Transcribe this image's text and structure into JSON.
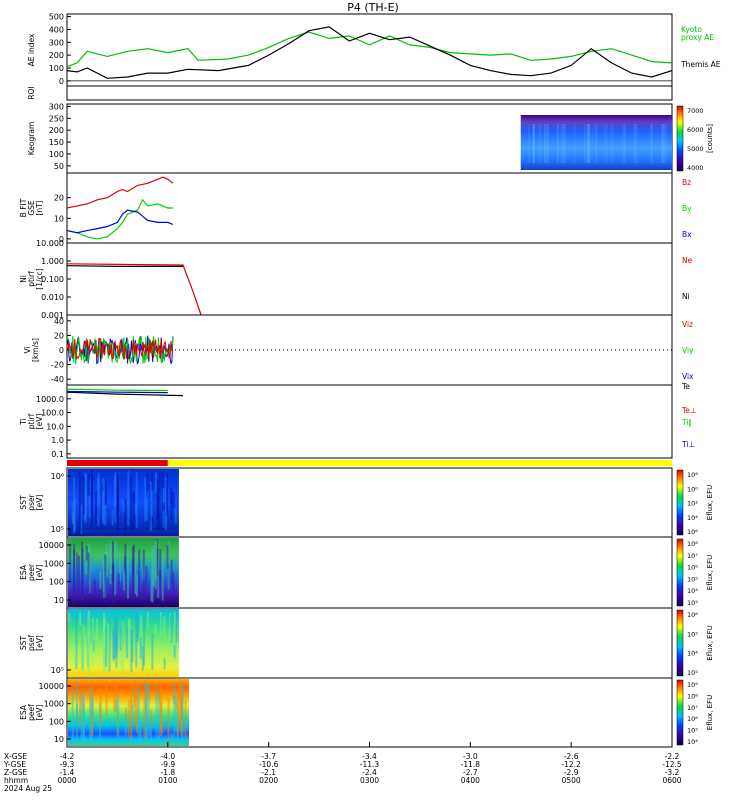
{
  "title": "P4 (TH-E)",
  "colors": {
    "kyoto": "#00c000",
    "themis": "#000000",
    "red": "#e00000",
    "green": "#00d000",
    "blue": "#0000e0",
    "yellow": "#ffff00"
  },
  "footer": {
    "labels": [
      "X-GSE",
      "Y-GSE",
      "Z-GSE",
      "hhmm",
      "2024 Aug 25"
    ],
    "columns": [
      {
        "x": "-4.2",
        "y": "-9.3",
        "z": "-1.4",
        "t": "0000"
      },
      {
        "x": "-4.0",
        "y": "-9.9",
        "z": "-1.8",
        "t": "0100"
      },
      {
        "x": "-3.7",
        "y": "-10.6",
        "z": "-2.1",
        "t": "0200"
      },
      {
        "x": "-3.4",
        "y": "-11.3",
        "z": "-2.4",
        "t": "0300"
      },
      {
        "x": "-3.0",
        "y": "-11.8",
        "z": "-2.7",
        "t": "0400"
      },
      {
        "x": "-2.6",
        "y": "-12.2",
        "z": "-2.9",
        "t": "0500"
      },
      {
        "x": "-2.2",
        "y": "-12.5",
        "z": "-3.2",
        "t": "0600"
      }
    ]
  },
  "chart_data": [
    {
      "id": "ae",
      "type": "line",
      "ylabel": "AE index",
      "yticks": [
        "0",
        "100",
        "200",
        "300",
        "400",
        "500"
      ],
      "ylim": [
        -40,
        520
      ],
      "xlim": [
        0,
        6
      ],
      "series": [
        {
          "name": "Kyoto proxy AE",
          "label_lines": [
            "Kyoto",
            "proxy AE"
          ],
          "color": "#00c000",
          "x": [
            0,
            0.1,
            0.2,
            0.4,
            0.6,
            0.8,
            1.0,
            1.2,
            1.3,
            1.6,
            1.8,
            2.0,
            2.2,
            2.4,
            2.6,
            2.8,
            3.0,
            3.2,
            3.4,
            3.6,
            3.8,
            4.0,
            4.2,
            4.4,
            4.6,
            4.8,
            5.0,
            5.2,
            5.4,
            5.6,
            5.8,
            6.0
          ],
          "y": [
            110,
            140,
            230,
            190,
            230,
            250,
            220,
            250,
            160,
            170,
            200,
            260,
            330,
            380,
            330,
            350,
            280,
            350,
            280,
            260,
            220,
            210,
            200,
            210,
            160,
            170,
            190,
            230,
            250,
            200,
            150,
            140
          ]
        },
        {
          "name": "Themis AE",
          "label_lines": [
            "Themis AE"
          ],
          "color": "#000000",
          "x": [
            0,
            0.1,
            0.2,
            0.4,
            0.6,
            0.8,
            1.0,
            1.2,
            1.5,
            1.8,
            2.0,
            2.2,
            2.4,
            2.6,
            2.8,
            3.0,
            3.2,
            3.4,
            3.6,
            3.8,
            4.0,
            4.2,
            4.4,
            4.6,
            4.8,
            5.0,
            5.2,
            5.4,
            5.6,
            5.8,
            6.0
          ],
          "y": [
            80,
            70,
            100,
            20,
            30,
            60,
            60,
            90,
            80,
            120,
            200,
            290,
            390,
            420,
            310,
            370,
            320,
            340,
            270,
            200,
            120,
            80,
            50,
            40,
            60,
            120,
            250,
            140,
            60,
            30,
            80
          ]
        }
      ]
    },
    {
      "id": "roi",
      "type": "line",
      "ylabel": "ROI",
      "yticks": [],
      "series": []
    },
    {
      "id": "keogram",
      "type": "heatmap",
      "ylabel": "Keogram",
      "yticks": [
        "50",
        "100",
        "150",
        "200",
        "250",
        "300"
      ],
      "ylim": [
        20,
        310
      ],
      "x_extent": [
        4.5,
        6.0
      ],
      "colorbar": {
        "label": "[counts]",
        "ticks": [
          "4000",
          "5000",
          "6000",
          "7000"
        ]
      }
    },
    {
      "id": "bfit",
      "type": "line",
      "ylabel_lines": [
        "B FIT",
        "GSE",
        "[nT]"
      ],
      "yticks": [
        "0",
        "10",
        "20"
      ],
      "ylim": [
        -2,
        32
      ],
      "xlim": [
        0,
        6
      ],
      "series": [
        {
          "name": "Bz",
          "color": "#e00000",
          "x": [
            0,
            0.1,
            0.2,
            0.3,
            0.4,
            0.5,
            0.55,
            0.6,
            0.7,
            0.8,
            0.9,
            0.95,
            1.0,
            1.05
          ],
          "y": [
            15,
            16,
            17,
            19,
            20,
            23,
            24,
            23,
            26,
            27,
            29,
            30,
            29,
            27
          ]
        },
        {
          "name": "By",
          "color": "#00d000",
          "x": [
            0,
            0.1,
            0.2,
            0.3,
            0.4,
            0.5,
            0.55,
            0.6,
            0.7,
            0.75,
            0.8,
            0.9,
            1.0,
            1.05
          ],
          "y": [
            4,
            3,
            1,
            0,
            1,
            5,
            8,
            12,
            14,
            19,
            16,
            17,
            15,
            15
          ]
        },
        {
          "name": "Bx",
          "color": "#0000e0",
          "x": [
            0,
            0.1,
            0.2,
            0.3,
            0.4,
            0.5,
            0.55,
            0.6,
            0.7,
            0.75,
            0.8,
            0.9,
            1.0,
            1.05
          ],
          "y": [
            4,
            3,
            4,
            5,
            6,
            8,
            12,
            14,
            13,
            11,
            9,
            8,
            8,
            7
          ]
        }
      ]
    },
    {
      "id": "density",
      "type": "line",
      "ylabel_lines": [
        "Ni",
        "ptirf",
        "[1/cc]"
      ],
      "yticks": [
        "0.001",
        "0.010",
        "0.100",
        "1.000",
        "10.000"
      ],
      "ylim": [
        0.001,
        10
      ],
      "scale": "log",
      "xlim": [
        0,
        6
      ],
      "series": [
        {
          "name": "Ne",
          "color": "#e00000",
          "x": [
            0,
            0.5,
            1.15,
            1.25,
            1.33
          ],
          "y": [
            0.7,
            0.65,
            0.6,
            0.02,
            0.001
          ]
        },
        {
          "name": "Ni",
          "color": "#000000",
          "x": [
            0,
            0.5,
            1.15
          ],
          "y": [
            0.55,
            0.5,
            0.5
          ]
        }
      ]
    },
    {
      "id": "velocity",
      "type": "line",
      "ylabel_lines": [
        "Vi",
        "[km/s]"
      ],
      "yticks": [
        "-40",
        "-20",
        "0",
        "20",
        "40"
      ],
      "ylim": [
        -48,
        48
      ],
      "xlim": [
        0,
        6
      ],
      "series": [
        {
          "name": "Viz",
          "color": "#e00000"
        },
        {
          "name": "Viy",
          "color": "#00d000"
        },
        {
          "name": "Vix",
          "color": "#0000e0"
        }
      ]
    },
    {
      "id": "temperature",
      "type": "line",
      "ylabel_lines": [
        "Ti",
        "ptirf",
        "[eV]"
      ],
      "yticks": [
        "0.1",
        "1.0",
        "10.0",
        "100.0",
        "1000.0"
      ],
      "ylim": [
        0.05,
        10000
      ],
      "scale": "log",
      "xlim": [
        0,
        6
      ],
      "series": [
        {
          "name": "Te",
          "color": "#000000",
          "x": [
            0,
            0.5,
            1.15
          ],
          "y": [
            3000,
            2200,
            1700
          ]
        },
        {
          "name": "Te⊥",
          "color": "#e00000"
        },
        {
          "name": "Ti∥",
          "color": "#00d000",
          "x": [
            0,
            0.5,
            1.0
          ],
          "y": [
            5000,
            4200,
            4000
          ]
        },
        {
          "name": "Ti⊥",
          "color": "#0000e0",
          "x": [
            0,
            0.5,
            1.0
          ],
          "y": [
            3500,
            3000,
            2800
          ]
        }
      ]
    },
    {
      "id": "mode-bar",
      "type": "bar",
      "segments": [
        {
          "from": 0,
          "to": 1.0,
          "color": "#e00000"
        },
        {
          "from": 1.0,
          "to": 6.0,
          "color": "#ffff00"
        }
      ]
    },
    {
      "id": "sst-eflux-1",
      "type": "heatmap",
      "ylabel_lines": [
        "SST",
        "pser",
        "[eV]"
      ],
      "yticks": [
        "10⁵",
        "10⁶"
      ],
      "x_extent": [
        0,
        1.1
      ],
      "colorbar": {
        "label": "Eflux, EFU",
        "ticks": [
          "10⁶",
          "10⁴",
          "10²",
          "10⁰",
          "10⁸"
        ]
      }
    },
    {
      "id": "esa-eflux-1",
      "type": "heatmap",
      "ylabel_lines": [
        "ESA",
        "peer",
        "[eV]"
      ],
      "yticks": [
        "10",
        "100",
        "1000",
        "10000"
      ],
      "x_extent": [
        0,
        1.1
      ],
      "colorbar": {
        "label": "Eflux, EFU",
        "ticks": [
          "10⁵",
          "10⁴",
          "10⁵",
          "10⁶",
          "10⁷",
          "10⁸"
        ]
      }
    },
    {
      "id": "sst-eflux-2",
      "type": "heatmap",
      "ylabel_lines": [
        "SST",
        "psef",
        "[eV]"
      ],
      "yticks": [
        "10⁵"
      ],
      "x_extent": [
        0,
        1.1
      ],
      "colorbar": {
        "label": "Eflux, EFU",
        "ticks": [
          "10⁵",
          "10⁴",
          "10⁵",
          "10⁶"
        ]
      }
    },
    {
      "id": "esa-eflux-2",
      "type": "heatmap",
      "ylabel_lines": [
        "ESA",
        "peef",
        "[eV]"
      ],
      "yticks": [
        "10",
        "100",
        "1000",
        "10000"
      ],
      "x_extent": [
        0,
        1.2
      ],
      "colorbar": {
        "label": "Eflux, EFU",
        "ticks": [
          "10⁴",
          "10⁵",
          "10⁶",
          "10⁷",
          "10⁸",
          "10⁹"
        ]
      }
    }
  ]
}
